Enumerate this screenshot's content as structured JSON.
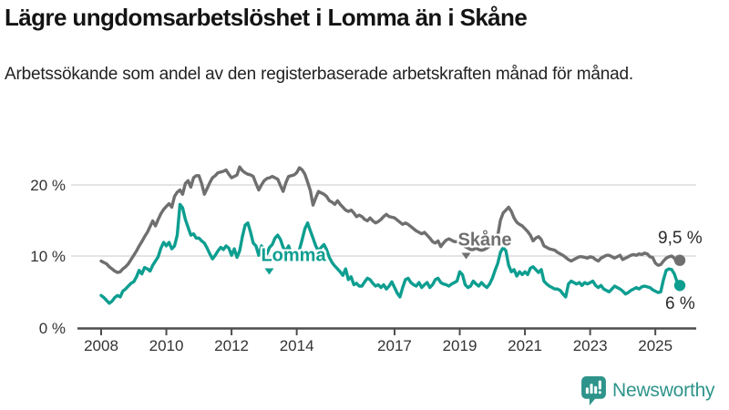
{
  "page": {
    "title": "Lägre ungdomsarbetslöshet i Lomma än i Skåne",
    "subtitle": "Arbetssökande som andel av den registerbaserade arbetskraften månad för månad.",
    "background": "#ffffff"
  },
  "branding": {
    "logo_text": "Newsworthy",
    "logo_color": "#2e948b",
    "logo_icon": "speech-bubble-bar-chart-exclamation"
  },
  "chart_data": {
    "type": "line",
    "title": "Lägre ungdomsarbetslöshet i Lomma än i Skåne",
    "subtitle": "Arbetssökande som andel av den registerbaserade arbetskraften månad för månad.",
    "unit": "percent",
    "frequency": "monthly",
    "x_start": "2008-01",
    "x_end": "2025-10",
    "x_tick_labels": [
      "2008",
      "2010",
      "2012",
      "2014",
      "2017",
      "2019",
      "2021",
      "2023",
      "2025"
    ],
    "y_tick_labels": [
      "20 %",
      "10 %",
      "0 %"
    ],
    "y_gridlines": [
      20,
      10
    ],
    "ylim": [
      0,
      24
    ],
    "grid": "horizontal-only",
    "legend_position": "inline-line-labels",
    "style": {
      "axis_color": "#4d4d4d",
      "gridline_color": "#dcdcdc",
      "tick_text_color": "#333333",
      "annotation_text_color": "#2a2a2a"
    },
    "series": [
      {
        "name": "Skåne",
        "color": "#6f6f6f",
        "end_label": "9,5 %",
        "end_value": 9.5,
        "values": [
          9.4,
          9.2,
          9.0,
          8.6,
          8.3,
          8.0,
          7.8,
          7.9,
          8.3,
          8.6,
          9.0,
          9.6,
          10.2,
          10.8,
          11.5,
          12.1,
          12.8,
          13.4,
          14.2,
          15.0,
          14.3,
          15.2,
          16.0,
          16.6,
          17.0,
          17.4,
          16.9,
          18.4,
          19.0,
          19.3,
          18.7,
          20.2,
          20.6,
          19.7,
          21.0,
          21.3,
          21.3,
          20.2,
          18.7,
          19.5,
          20.3,
          21.0,
          21.3,
          21.7,
          21.8,
          21.9,
          22.1,
          21.5,
          21.0,
          21.2,
          21.4,
          22.5,
          22.0,
          21.7,
          21.5,
          21.4,
          21.2,
          20.2,
          19.3,
          20.0,
          20.6,
          20.9,
          21.0,
          21.2,
          21.0,
          20.8,
          19.9,
          19.1,
          20.3,
          21.2,
          21.3,
          21.4,
          21.7,
          22.4,
          22.1,
          21.5,
          20.4,
          19.2,
          17.2,
          18.2,
          19.1,
          18.9,
          18.7,
          18.4,
          17.8,
          17.6,
          17.3,
          17.8,
          17.3,
          16.9,
          16.5,
          16.3,
          16.5,
          16.1,
          15.6,
          15.8,
          15.6,
          15.2,
          15.0,
          15.4,
          15.0,
          14.7,
          14.9,
          15.2,
          15.6,
          15.9,
          15.6,
          15.5,
          15.4,
          15.1,
          14.8,
          14.5,
          14.7,
          14.5,
          14.2,
          13.9,
          13.6,
          13.4,
          13.2,
          13.4,
          13.0,
          12.6,
          12.1,
          11.9,
          12.2,
          11.4,
          11.9,
          12.3,
          12.5,
          12.3,
          12.1,
          12.1,
          11.9,
          11.7,
          11.4,
          11.2,
          11.0,
          11.0,
          11.2,
          11.0,
          10.9,
          11.0,
          11.2,
          11.5,
          11.9,
          12.4,
          13.0,
          15.1,
          16.1,
          16.5,
          16.9,
          16.3,
          15.4,
          14.8,
          14.5,
          14.3,
          13.9,
          13.5,
          13.0,
          12.2,
          12.6,
          12.8,
          12.4,
          11.5,
          11.3,
          11.1,
          11.0,
          10.9,
          10.6,
          10.4,
          10.2,
          9.9,
          9.6,
          9.4,
          9.6,
          9.8,
          10.0,
          10.0,
          9.9,
          9.8,
          10.0,
          9.9,
          9.6,
          9.4,
          9.8,
          10.0,
          10.2,
          10.2,
          10.0,
          9.8,
          10.0,
          10.2,
          9.6,
          9.8,
          10.0,
          10.2,
          10.3,
          10.2,
          10.4,
          10.3,
          10.5,
          10.4,
          10.0,
          9.9,
          9.1,
          8.8,
          8.9,
          9.4,
          9.8,
          10.0,
          10.1,
          9.8,
          9.2,
          9.5
        ]
      },
      {
        "name": "Lomma",
        "color": "#0d9e90",
        "end_label": "6 %",
        "end_value": 6.0,
        "values": [
          4.6,
          4.3,
          3.9,
          3.5,
          3.8,
          4.3,
          4.6,
          4.4,
          5.2,
          5.5,
          5.9,
          6.3,
          6.5,
          7.2,
          8.1,
          7.6,
          8.5,
          8.3,
          8.0,
          8.8,
          9.4,
          10.0,
          11.2,
          12.0,
          11.5,
          12.0,
          11.1,
          11.5,
          13.0,
          17.3,
          16.8,
          15.2,
          14.1,
          13.0,
          13.2,
          12.6,
          12.6,
          12.2,
          11.9,
          11.2,
          10.4,
          9.7,
          10.2,
          10.8,
          11.3,
          11.0,
          11.5,
          11.2,
          10.2,
          11.1,
          9.9,
          10.8,
          12.8,
          14.4,
          14.7,
          13.4,
          11.9,
          11.5,
          10.2,
          11.5,
          11.0,
          10.4,
          11.3,
          11.7,
          12.6,
          13.0,
          12.4,
          11.3,
          10.8,
          11.5,
          10.4,
          9.9,
          10.2,
          11.0,
          12.4,
          13.9,
          14.7,
          13.6,
          12.6,
          11.5,
          10.8,
          11.3,
          11.7,
          11.0,
          9.9,
          9.2,
          8.7,
          8.3,
          7.9,
          7.4,
          8.3,
          6.8,
          7.2,
          6.1,
          6.3,
          5.9,
          5.9,
          6.5,
          7.0,
          6.8,
          6.3,
          5.9,
          6.1,
          5.7,
          6.1,
          5.5,
          5.9,
          6.5,
          5.7,
          4.9,
          4.4,
          5.7,
          6.8,
          7.0,
          6.4,
          6.1,
          5.9,
          6.4,
          5.7,
          6.1,
          6.4,
          5.7,
          6.1,
          6.8,
          7.0,
          6.4,
          6.2,
          6.1,
          5.9,
          6.2,
          6.4,
          6.6,
          7.9,
          7.5,
          6.1,
          5.7,
          5.9,
          6.6,
          6.2,
          5.9,
          6.4,
          6.0,
          5.7,
          6.2,
          7.0,
          8.1,
          9.1,
          10.6,
          11.3,
          10.8,
          8.8,
          7.9,
          8.2,
          7.3,
          7.9,
          7.5,
          7.9,
          7.5,
          8.4,
          8.6,
          8.2,
          7.8,
          8.2,
          6.6,
          6.2,
          5.9,
          5.7,
          5.5,
          5.5,
          5.3,
          4.8,
          4.4,
          6.2,
          6.6,
          6.4,
          6.2,
          6.4,
          6.0,
          6.4,
          6.2,
          6.4,
          6.6,
          6.0,
          5.7,
          6.0,
          5.5,
          5.3,
          5.1,
          5.5,
          5.9,
          5.7,
          5.5,
          5.2,
          4.8,
          5.0,
          5.3,
          5.5,
          5.7,
          5.5,
          5.8,
          5.9,
          5.8,
          5.7,
          5.4,
          5.2,
          5.0,
          5.1,
          6.8,
          8.1,
          8.3,
          8.2,
          7.6,
          6.5,
          6.0
        ]
      }
    ]
  }
}
